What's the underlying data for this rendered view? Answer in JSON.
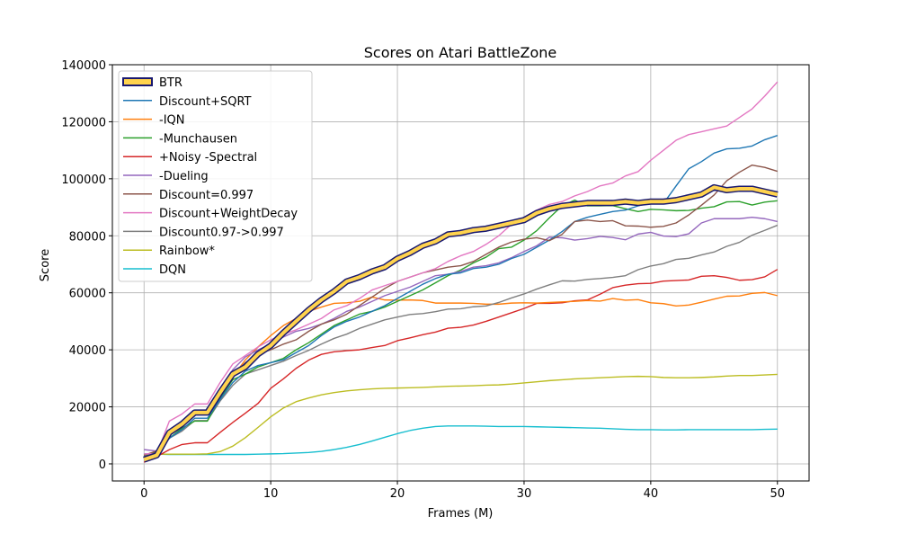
{
  "chart_data": {
    "type": "line",
    "title": "Scores on Atari BattleZone",
    "xlabel": "Frames (M)",
    "ylabel": "Score",
    "xlim": [
      -2.5,
      52.5
    ],
    "ylim": [
      -6000,
      140000
    ],
    "xticks": [
      0,
      10,
      20,
      30,
      40,
      50
    ],
    "xtick_labels": [
      "0",
      "10",
      "20",
      "30",
      "40",
      "50"
    ],
    "yticks": [
      0,
      20000,
      40000,
      60000,
      80000,
      100000,
      120000,
      140000
    ],
    "ytick_labels": [
      "0",
      "20000",
      "40000",
      "60000",
      "80000",
      "100000",
      "120000",
      "140000"
    ],
    "grid": true,
    "legend_position": "top-left",
    "x": [
      0,
      1,
      2,
      3,
      4,
      5,
      6,
      7,
      8,
      9,
      10,
      11,
      12,
      13,
      14,
      15,
      16,
      17,
      18,
      19,
      20,
      21,
      22,
      23,
      24,
      25,
      26,
      27,
      28,
      29,
      30,
      31,
      32,
      33,
      34,
      35,
      36,
      37,
      38,
      39,
      40,
      41,
      42,
      43,
      44,
      45,
      46,
      47,
      48,
      49,
      50
    ],
    "series": [
      {
        "name": "DQN",
        "color": "#17becf",
        "values": [
          3500,
          3400,
          3300,
          3300,
          3300,
          3300,
          3300,
          3300,
          3300,
          3400,
          3500,
          3600,
          3800,
          4000,
          4400,
          5000,
          5800,
          6800,
          8000,
          9300,
          10600,
          11700,
          12500,
          13100,
          13300,
          13300,
          13300,
          13200,
          13100,
          13100,
          13100,
          13000,
          12900,
          12800,
          12700,
          12600,
          12500,
          12300,
          12100,
          12000,
          12000,
          11900,
          11900,
          12000,
          12000,
          12000,
          12000,
          12000,
          12000,
          12100,
          12200
        ]
      },
      {
        "name": "Rainbow*",
        "color": "#bcbd22",
        "values": [
          3400,
          3400,
          3400,
          3400,
          3400,
          3500,
          4300,
          6200,
          9200,
          12800,
          16500,
          19600,
          21800,
          23100,
          24200,
          25000,
          25600,
          26000,
          26300,
          26500,
          26600,
          26700,
          26800,
          27000,
          27200,
          27300,
          27400,
          27600,
          27700,
          28000,
          28400,
          28800,
          29200,
          29500,
          29800,
          30000,
          30200,
          30400,
          30600,
          30700,
          30600,
          30300,
          30200,
          30200,
          30300,
          30500,
          30800,
          31000,
          31000,
          31200,
          31400
        ]
      },
      {
        "name": "+Noisy -Spectral",
        "color": "#d62728",
        "values": [
          600,
          2500,
          5000,
          6800,
          7400,
          7400,
          11000,
          14500,
          17800,
          21200,
          26500,
          29800,
          33500,
          36400,
          38400,
          39300,
          39700,
          40000,
          40800,
          41500,
          43200,
          44200,
          45300,
          46200,
          47600,
          47900,
          48700,
          50000,
          51500,
          53000,
          54500,
          56300,
          56300,
          56500,
          57200,
          57500,
          59500,
          61800,
          62700,
          63200,
          63300,
          64100,
          64300,
          64500,
          65800,
          66000,
          65400,
          64400,
          64600,
          65600,
          68200
        ]
      },
      {
        "name": "-IQN",
        "color": "#ff7f0e",
        "values": [
          3000,
          4500,
          10000,
          13000,
          17500,
          17700,
          25000,
          30500,
          36500,
          41000,
          45000,
          48500,
          51000,
          53500,
          55000,
          56300,
          56500,
          57000,
          58500,
          57500,
          57400,
          57500,
          57300,
          56400,
          56400,
          56400,
          56300,
          56000,
          56000,
          56400,
          56500,
          56400,
          56600,
          56800,
          57000,
          57300,
          57100,
          58000,
          57400,
          57600,
          56500,
          56200,
          55400,
          55700,
          56700,
          57800,
          58800,
          58900,
          59800,
          60100,
          59000
        ]
      },
      {
        "name": "Discount0.97->0.997",
        "color": "#7f7f7f",
        "values": [
          3000,
          4300,
          9000,
          11500,
          15200,
          15200,
          22000,
          27500,
          31500,
          33000,
          34500,
          36000,
          38000,
          39800,
          42000,
          44000,
          45500,
          47500,
          49000,
          50500,
          51500,
          52400,
          52700,
          53400,
          54300,
          54400,
          55100,
          55400,
          56600,
          58200,
          59600,
          61300,
          62800,
          64200,
          64100,
          64700,
          65000,
          65400,
          66000,
          68100,
          69400,
          70200,
          71700,
          72100,
          73300,
          74300,
          76300,
          77700,
          80200,
          81900,
          83700
        ]
      },
      {
        "name": "-Munchausen",
        "color": "#2ca02c",
        "values": [
          3000,
          4000,
          9000,
          12500,
          15000,
          15000,
          23000,
          29500,
          31500,
          34000,
          35500,
          37000,
          40000,
          42500,
          45500,
          48500,
          50500,
          52500,
          53500,
          55000,
          57000,
          59000,
          61000,
          63500,
          66000,
          68000,
          70500,
          72500,
          75500,
          76000,
          78500,
          81800,
          86300,
          90500,
          92500,
          90500,
          90500,
          90600,
          89500,
          88500,
          89300,
          89100,
          88800,
          88900,
          89700,
          90200,
          91900,
          92000,
          90800,
          91800,
          92300
        ]
      },
      {
        "name": "-Dueling",
        "color": "#9467bd",
        "values": [
          5000,
          4500,
          10500,
          13000,
          17500,
          17500,
          25500,
          33000,
          37500,
          40000,
          42000,
          44500,
          46500,
          47500,
          49000,
          51000,
          53500,
          55000,
          57000,
          59000,
          60500,
          62000,
          64000,
          66000,
          66500,
          67500,
          69000,
          69500,
          70500,
          72300,
          74500,
          76500,
          79500,
          79300,
          78500,
          79000,
          79800,
          79400,
          78600,
          80600,
          81200,
          79900,
          79700,
          80700,
          84500,
          86000,
          86000,
          86000,
          86500,
          86000,
          85000
        ]
      },
      {
        "name": "Discount+SQRT",
        "color": "#1f77b4",
        "values": [
          2500,
          3500,
          9000,
          12000,
          16000,
          16000,
          22500,
          28500,
          32500,
          34500,
          35500,
          36500,
          39000,
          41500,
          45000,
          48000,
          50000,
          51500,
          53500,
          55500,
          58000,
          60500,
          63000,
          65000,
          66500,
          67000,
          68500,
          69000,
          70000,
          72000,
          73500,
          76000,
          78500,
          81500,
          85000,
          86500,
          87500,
          88500,
          89000,
          90500,
          91500,
          91300,
          97500,
          103500,
          106000,
          109000,
          110500,
          110700,
          111500,
          113700,
          115200
        ]
      },
      {
        "name": "Discount=0.997",
        "color": "#8c564b",
        "values": [
          3000,
          4500,
          10000,
          13000,
          17500,
          17500,
          25000,
          31000,
          35500,
          38500,
          40000,
          42000,
          43500,
          46500,
          49000,
          50500,
          52500,
          55500,
          58500,
          61500,
          64000,
          65500,
          67000,
          68000,
          69000,
          69500,
          71000,
          73500,
          76000,
          77800,
          78800,
          79300,
          78300,
          80500,
          85000,
          85500,
          85000,
          85300,
          83500,
          83400,
          83000,
          83300,
          84500,
          87300,
          90700,
          94300,
          99300,
          102300,
          104800,
          104000,
          102600
        ]
      },
      {
        "name": "Discount+WeightDecay",
        "color": "#e377c2",
        "values": [
          3500,
          3500,
          15000,
          17500,
          21000,
          21000,
          28500,
          35000,
          38000,
          41000,
          43500,
          45500,
          47000,
          49000,
          51000,
          54000,
          55500,
          58000,
          61000,
          62500,
          64000,
          65500,
          67000,
          68500,
          71000,
          73000,
          74500,
          77000,
          80000,
          84000,
          86500,
          89000,
          91000,
          92000,
          94000,
          95500,
          97500,
          98500,
          101000,
          102500,
          106500,
          110000,
          113500,
          115500,
          116500,
          117500,
          118500,
          121500,
          124500,
          129000,
          134000
        ]
      },
      {
        "name": "BTR",
        "color": "#ffd34d",
        "edge": "#191970",
        "values": [
          1500,
          3000,
          11000,
          14000,
          18000,
          18000,
          25000,
          31500,
          34000,
          38500,
          41500,
          46000,
          50000,
          54000,
          57500,
          60500,
          64000,
          65500,
          67500,
          69000,
          72000,
          74000,
          76500,
          78000,
          80500,
          81000,
          82000,
          82500,
          83500,
          84500,
          85500,
          88000,
          89500,
          90500,
          91000,
          91500,
          91500,
          91500,
          92000,
          91500,
          92000,
          92000,
          92500,
          93500,
          94500,
          97000,
          96000,
          96500,
          96500,
          95500,
          94500
        ]
      }
    ]
  }
}
